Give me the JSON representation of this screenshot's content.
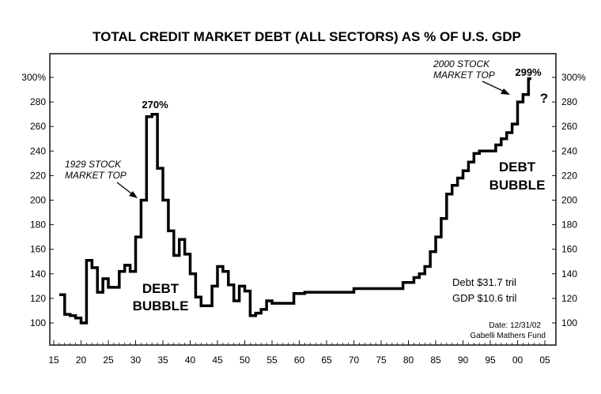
{
  "chart_data": {
    "type": "line",
    "title": "TOTAL CREDIT MARKET DEBT (ALL SECTORS) AS % OF U.S. GDP",
    "xlabel": "",
    "ylabel": "",
    "xlim": [
      1916,
      2005
    ],
    "ylim": [
      90,
      308
    ],
    "x_tick_labels": [
      "15",
      "20",
      "25",
      "30",
      "35",
      "40",
      "45",
      "50",
      "55",
      "60",
      "65",
      "70",
      "75",
      "80",
      "85",
      "90",
      "95",
      "00",
      "05"
    ],
    "x_tick_values": [
      1915,
      1920,
      1925,
      1930,
      1935,
      1940,
      1945,
      1950,
      1955,
      1960,
      1965,
      1970,
      1975,
      1980,
      1985,
      1990,
      1995,
      2000,
      2005
    ],
    "y_tick_labels_left": [
      "300%",
      "280",
      "260",
      "240",
      "220",
      "200",
      "180",
      "160",
      "140",
      "120",
      "100"
    ],
    "y_tick_labels_right": [
      "300%",
      "280",
      "260",
      "240",
      "220",
      "200",
      "180",
      "160",
      "140",
      "120",
      "100"
    ],
    "y_tick_values": [
      300,
      280,
      260,
      240,
      220,
      200,
      180,
      160,
      140,
      120,
      100
    ],
    "grid": false,
    "series": [
      {
        "values": [
          [
            1916,
            123
          ],
          [
            1917,
            107
          ],
          [
            1918,
            106
          ],
          [
            1919,
            104
          ],
          [
            1920,
            100
          ],
          [
            1921,
            151
          ],
          [
            1922,
            145
          ],
          [
            1923,
            125
          ],
          [
            1924,
            136
          ],
          [
            1925,
            129
          ],
          [
            1926,
            129
          ],
          [
            1927,
            142
          ],
          [
            1928,
            147
          ],
          [
            1929,
            142
          ],
          [
            1930,
            170
          ],
          [
            1931,
            200
          ],
          [
            1932,
            268
          ],
          [
            1933,
            270
          ],
          [
            1934,
            226
          ],
          [
            1935,
            200
          ],
          [
            1936,
            175
          ],
          [
            1937,
            155
          ],
          [
            1938,
            168
          ],
          [
            1939,
            156
          ],
          [
            1940,
            140
          ],
          [
            1941,
            121
          ],
          [
            1942,
            114
          ],
          [
            1943,
            114
          ],
          [
            1944,
            130
          ],
          [
            1945,
            146
          ],
          [
            1946,
            142
          ],
          [
            1947,
            131
          ],
          [
            1948,
            118
          ],
          [
            1949,
            130
          ],
          [
            1950,
            126
          ],
          [
            1951,
            106
          ],
          [
            1952,
            108
          ],
          [
            1953,
            111
          ],
          [
            1954,
            118
          ],
          [
            1955,
            116
          ],
          [
            1956,
            116
          ],
          [
            1957,
            116
          ],
          [
            1958,
            116
          ],
          [
            1959,
            124
          ],
          [
            1960,
            124
          ],
          [
            1961,
            125
          ],
          [
            1962,
            125
          ],
          [
            1963,
            125
          ],
          [
            1964,
            125
          ],
          [
            1965,
            125
          ],
          [
            1966,
            125
          ],
          [
            1967,
            125
          ],
          [
            1968,
            125
          ],
          [
            1969,
            125
          ],
          [
            1970,
            128
          ],
          [
            1971,
            128
          ],
          [
            1972,
            128
          ],
          [
            1973,
            128
          ],
          [
            1974,
            128
          ],
          [
            1975,
            128
          ],
          [
            1976,
            128
          ],
          [
            1977,
            128
          ],
          [
            1978,
            128
          ],
          [
            1979,
            133
          ],
          [
            1980,
            133
          ],
          [
            1981,
            137
          ],
          [
            1982,
            140
          ],
          [
            1983,
            146
          ],
          [
            1984,
            158
          ],
          [
            1985,
            170
          ],
          [
            1986,
            185
          ],
          [
            1987,
            205
          ],
          [
            1988,
            212
          ],
          [
            1989,
            218
          ],
          [
            1990,
            224
          ],
          [
            1991,
            231
          ],
          [
            1992,
            238
          ],
          [
            1993,
            240
          ],
          [
            1994,
            240
          ],
          [
            1995,
            240
          ],
          [
            1996,
            245
          ],
          [
            1997,
            250
          ],
          [
            1998,
            255
          ],
          [
            1999,
            262
          ],
          [
            2000,
            280
          ],
          [
            2001,
            286
          ],
          [
            2002,
            299
          ]
        ]
      }
    ],
    "annotations": {
      "peak_1933": "270%",
      "peak_2002": "299%",
      "top_1929_line1": "1929 STOCK",
      "top_1929_line2": "MARKET TOP",
      "top_2000_line1": "2000 STOCK",
      "top_2000_line2": "MARKET TOP",
      "question": "?",
      "bubble_left_line1": "DEBT",
      "bubble_left_line2": "BUBBLE",
      "bubble_right_line1": "DEBT",
      "bubble_right_line2": "BUBBLE",
      "debt": "Debt $31.7 tril",
      "gdp": "GDP $10.6 tril",
      "date": "Date: 12/31/02",
      "source": "Gabelli Mathers Fund"
    }
  }
}
